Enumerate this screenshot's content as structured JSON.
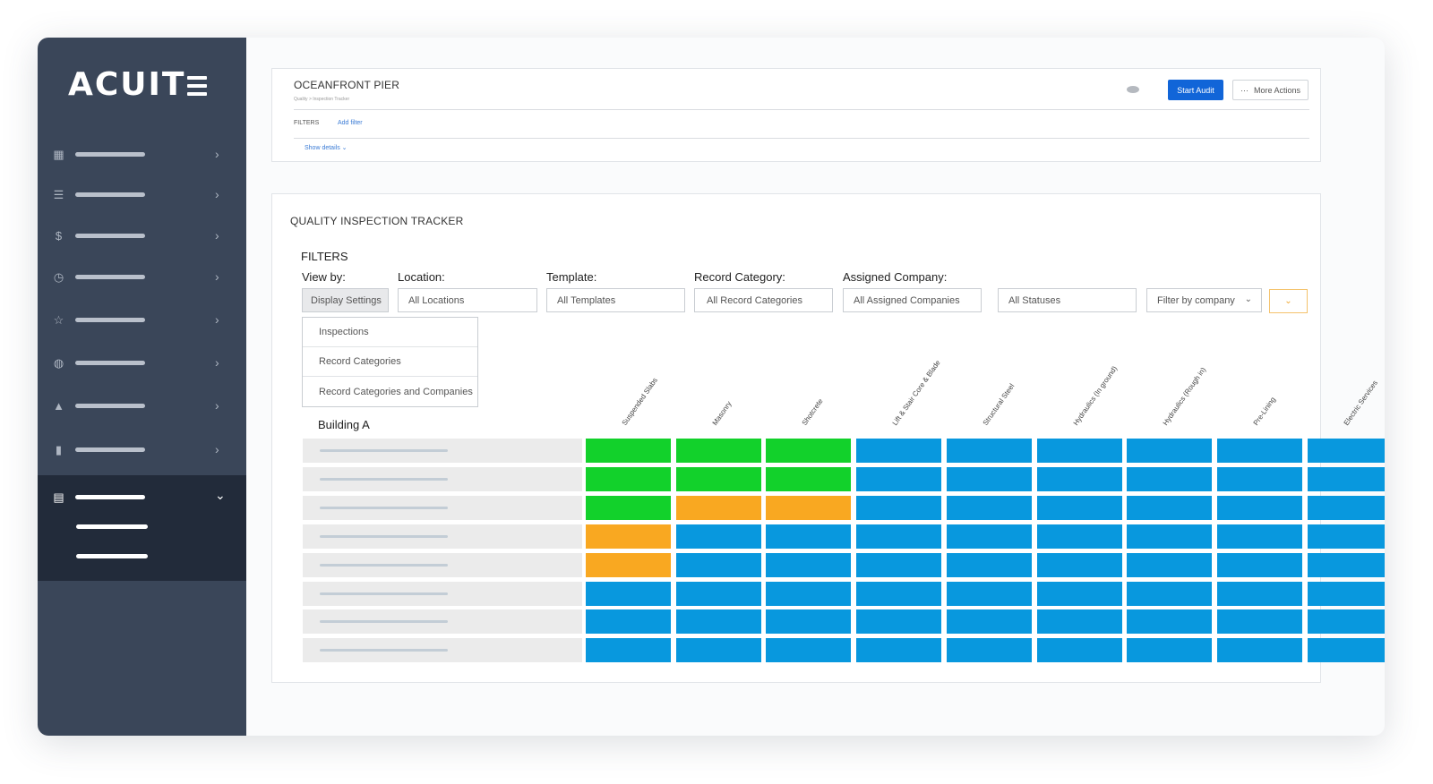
{
  "sidebar": {
    "logo": "ACUIT",
    "items": [
      {
        "icon": "dashboard-icon",
        "glyph": "▦"
      },
      {
        "icon": "list-icon",
        "glyph": "☰"
      },
      {
        "icon": "dollar-icon",
        "glyph": "$"
      },
      {
        "icon": "clock-icon",
        "glyph": "◷"
      },
      {
        "icon": "star-icon",
        "glyph": "☆"
      },
      {
        "icon": "globe-icon",
        "glyph": "◍"
      },
      {
        "icon": "warning-icon",
        "glyph": "▲"
      },
      {
        "icon": "file-icon",
        "glyph": "▮"
      }
    ],
    "active": {
      "icon": "document-icon",
      "glyph": "▤",
      "chevron": "⌄"
    }
  },
  "header": {
    "project_title": "OCEANFRONT PIER",
    "breadcrumb": "Quality > Inspection Tracker",
    "start_audit": "Start Audit",
    "more_actions": "More Actions",
    "more_dots": "···",
    "filters_label": "FILTERS",
    "add_filter": "Add filter",
    "show_details": "Show details ⌄"
  },
  "tracker": {
    "title": "QUALITY INSPECTION TRACKER",
    "filters_heading": "FILTERS",
    "view_by_label": "View by:",
    "location_label": "Location:",
    "template_label": "Template:",
    "record_category_label": "Record Category:",
    "assigned_company_label": "Assigned Company:",
    "view_by_value": "Display Settings",
    "location_value": "All Locations",
    "template_value": "All Templates",
    "record_category_value": "All Record Categories",
    "assigned_company_value": "All Assigned Companies",
    "status_value": "All Statuses",
    "company_filter_placeholder": "Filter by company",
    "caret": "⌄",
    "view_options": [
      "Inspections",
      "Record Categories",
      "Record Categories and Companies"
    ],
    "group_label": "Building A",
    "columns": [
      "Suspended Slabs",
      "Masonry",
      "Shotcrete",
      "Lift & Stair Core & Blade",
      "Structural Steel",
      "Hydraulics (In ground)",
      "Hydraulics (Rough in)",
      "Pre-Lining",
      "Electric Services"
    ],
    "status_colors": {
      "complete": "#12d12b",
      "pending": "#f9a821",
      "not_started": "#0898de"
    },
    "rows": [
      [
        "complete",
        "complete",
        "complete",
        "not_started",
        "not_started",
        "not_started",
        "not_started",
        "not_started",
        "not_started"
      ],
      [
        "complete",
        "complete",
        "complete",
        "not_started",
        "not_started",
        "not_started",
        "not_started",
        "not_started",
        "not_started"
      ],
      [
        "complete",
        "pending",
        "pending",
        "not_started",
        "not_started",
        "not_started",
        "not_started",
        "not_started",
        "not_started"
      ],
      [
        "pending",
        "not_started",
        "not_started",
        "not_started",
        "not_started",
        "not_started",
        "not_started",
        "not_started",
        "not_started"
      ],
      [
        "pending",
        "not_started",
        "not_started",
        "not_started",
        "not_started",
        "not_started",
        "not_started",
        "not_started",
        "not_started"
      ],
      [
        "not_started",
        "not_started",
        "not_started",
        "not_started",
        "not_started",
        "not_started",
        "not_started",
        "not_started",
        "not_started"
      ],
      [
        "not_started",
        "not_started",
        "not_started",
        "not_started",
        "not_started",
        "not_started",
        "not_started",
        "not_started",
        "not_started"
      ],
      [
        "not_started",
        "not_started",
        "not_started",
        "not_started",
        "not_started",
        "not_started",
        "not_started",
        "not_started",
        "not_started"
      ]
    ]
  }
}
